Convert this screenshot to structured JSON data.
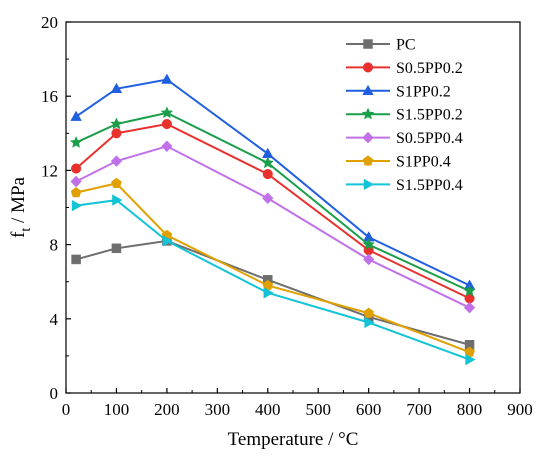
{
  "chart_data": {
    "type": "line",
    "xlabel": "Temperature / °C",
    "ylabel_main": "f",
    "ylabel_sub": "t",
    "ylabel_unit": " / MPa",
    "xlim": [
      0,
      900
    ],
    "ylim": [
      0,
      20
    ],
    "xticks": [
      0,
      100,
      200,
      300,
      400,
      500,
      600,
      700,
      800,
      900
    ],
    "yticks": [
      0,
      4,
      8,
      12,
      16,
      20
    ],
    "grid": false,
    "legend_position": "top-right",
    "series": [
      {
        "name": "PC",
        "color": "#6e6e6e",
        "marker": "square",
        "x": [
          20,
          100,
          200,
          400,
          600,
          800
        ],
        "y": [
          7.2,
          7.8,
          8.2,
          6.1,
          4.1,
          2.6
        ]
      },
      {
        "name": "S0.5PP0.2",
        "color": "#e8302c",
        "marker": "circle",
        "x": [
          20,
          100,
          200,
          400,
          600,
          800
        ],
        "y": [
          12.1,
          14.0,
          14.5,
          11.8,
          7.7,
          5.1
        ]
      },
      {
        "name": "S1PP0.2",
        "color": "#1f5fe0",
        "marker": "triangle-up",
        "x": [
          20,
          100,
          200,
          400,
          600,
          800
        ],
        "y": [
          14.9,
          16.4,
          16.9,
          12.9,
          8.4,
          5.8
        ]
      },
      {
        "name": "S1.5PP0.2",
        "color": "#1a9e4a",
        "marker": "star",
        "x": [
          20,
          100,
          200,
          400,
          600,
          800
        ],
        "y": [
          13.5,
          14.5,
          15.1,
          12.4,
          8.0,
          5.5
        ]
      },
      {
        "name": "S0.5PP0.4",
        "color": "#c070e8",
        "marker": "diamond",
        "x": [
          20,
          100,
          200,
          400,
          600,
          800
        ],
        "y": [
          11.4,
          12.5,
          13.3,
          10.5,
          7.2,
          4.6
        ]
      },
      {
        "name": "S1PP0.4",
        "color": "#e0a000",
        "marker": "pentagon",
        "x": [
          20,
          100,
          200,
          400,
          600,
          800
        ],
        "y": [
          10.8,
          11.3,
          8.5,
          5.8,
          4.3,
          2.2
        ]
      },
      {
        "name": "S1.5PP0.4",
        "color": "#12c4d6",
        "marker": "triangle-right",
        "x": [
          20,
          100,
          200,
          400,
          600,
          800
        ],
        "y": [
          10.1,
          10.4,
          8.2,
          5.4,
          3.8,
          1.8
        ]
      }
    ]
  }
}
